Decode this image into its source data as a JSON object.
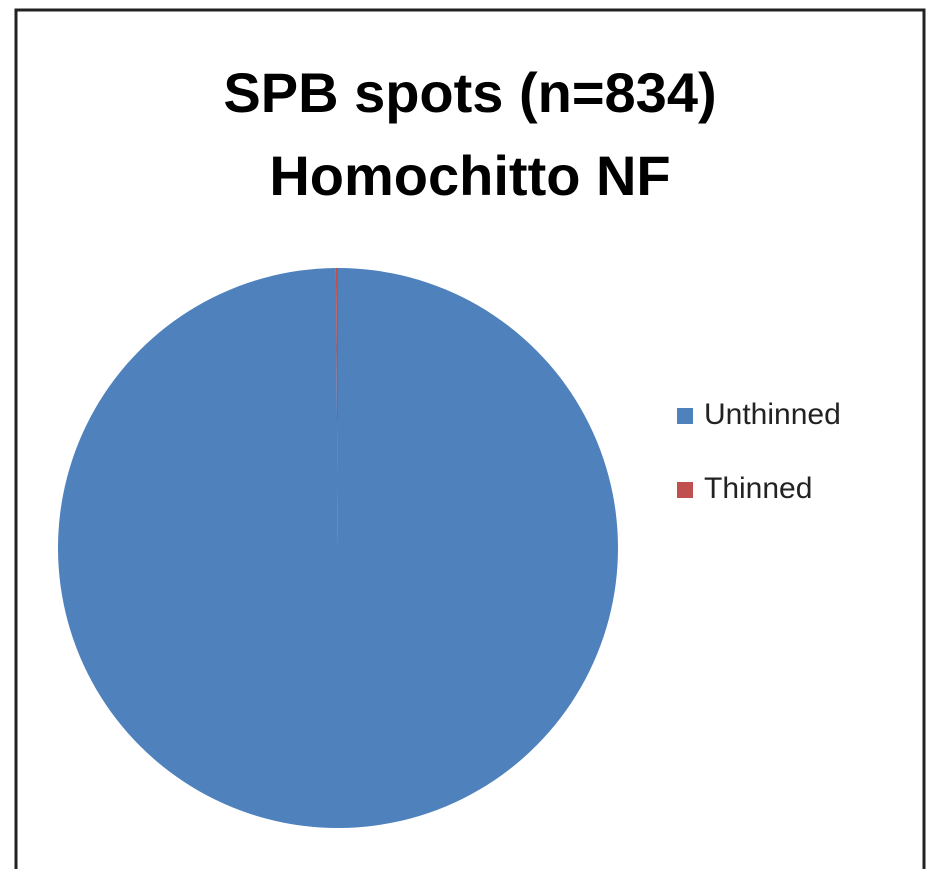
{
  "chart_data": {
    "type": "pie",
    "title": [
      "SPB spots (n=834)",
      "Homochitto NF"
    ],
    "categories": [
      "Unthinned",
      "Thinned"
    ],
    "values": [
      833,
      1
    ],
    "colors": [
      "#4f81bd",
      "#c0504d"
    ],
    "legend": "right"
  }
}
